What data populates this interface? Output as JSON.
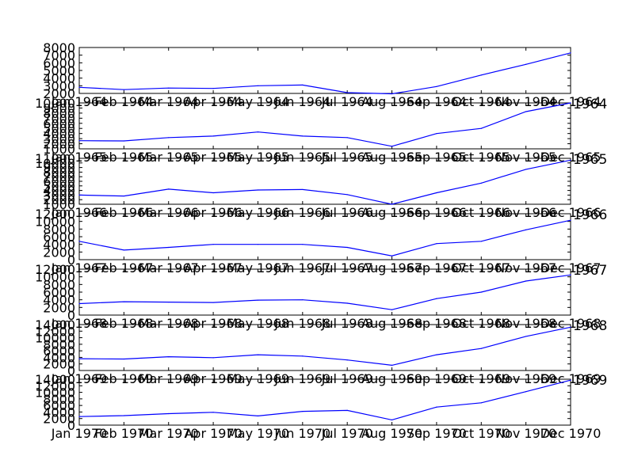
{
  "chart_data": [
    {
      "type": "line",
      "year_label": "",
      "categories": [
        "Jan 1964",
        "Feb 1964",
        "Mar 1964",
        "Apr 1964",
        "May 1964",
        "Jun 1964",
        "Jul 1964",
        "Aug 1964",
        "Sep 1964",
        "Oct 1964",
        "Nov 1964",
        "Dec 1964"
      ],
      "values": [
        2800,
        2500,
        2700,
        2650,
        3000,
        3100,
        2100,
        1950,
        2900,
        4400,
        5800,
        7300
      ],
      "ylim": [
        2000,
        8000
      ],
      "yticks": [
        2000,
        3000,
        4000,
        5000,
        6000,
        7000,
        8000
      ],
      "line_color": "#0000ff"
    },
    {
      "type": "line",
      "year_label": "1964",
      "categories": [
        "Jan 1965",
        "Feb 1965",
        "Mar 1965",
        "Apr 1965",
        "May 1965",
        "Jun 1965",
        "Jul 1965",
        "Aug 1965",
        "Sep 1965",
        "Oct 1965",
        "Nov 1965",
        "Dec 1965"
      ],
      "values": [
        2600,
        2550,
        3200,
        3500,
        4300,
        3500,
        3200,
        1500,
        4000,
        5000,
        8300,
        10000
      ],
      "ylim": [
        1000,
        10000
      ],
      "yticks": [
        1000,
        2000,
        3000,
        4000,
        5000,
        6000,
        7000,
        8000,
        9000,
        10000
      ],
      "line_color": "#0000ff"
    },
    {
      "type": "line",
      "year_label": "1965",
      "categories": [
        "Jan 1966",
        "Feb 1966",
        "Mar 1966",
        "Apr 1966",
        "May 1966",
        "Jun 1966",
        "Jul 1966",
        "Aug 1966",
        "Sep 1966",
        "Oct 1966",
        "Nov 1966",
        "Dec 1966"
      ],
      "values": [
        3000,
        2800,
        4300,
        3500,
        4100,
        4200,
        3100,
        1000,
        3500,
        5600,
        8600,
        10600
      ],
      "ylim": [
        1000,
        11000
      ],
      "yticks": [
        1000,
        2000,
        3000,
        4000,
        5000,
        6000,
        7000,
        8000,
        9000,
        10000,
        11000
      ],
      "line_color": "#0000ff"
    },
    {
      "type": "line",
      "year_label": "1966",
      "categories": [
        "Jan 1967",
        "Feb 1967",
        "Mar 1967",
        "Apr 1967",
        "May 1967",
        "Jun 1967",
        "Jul 1967",
        "Aug 1967",
        "Sep 1967",
        "Oct 1967",
        "Nov 1967",
        "Dec 1967"
      ],
      "values": [
        4800,
        2500,
        3200,
        4000,
        4000,
        4000,
        3200,
        1000,
        4200,
        4800,
        7800,
        10300
      ],
      "ylim": [
        0,
        12000
      ],
      "yticks": [
        0,
        2000,
        4000,
        6000,
        8000,
        10000,
        12000
      ],
      "line_color": "#0000ff"
    },
    {
      "type": "line",
      "year_label": "1967",
      "categories": [
        "Jan 1968",
        "Feb 1968",
        "Mar 1968",
        "Apr 1968",
        "May 1968",
        "Jun 1968",
        "Jul 1968",
        "Aug 1968",
        "Sep 1968",
        "Oct 1968",
        "Nov 1968",
        "Dec 1968"
      ],
      "values": [
        3000,
        3500,
        3400,
        3300,
        3900,
        4000,
        3100,
        1400,
        4300,
        6000,
        8900,
        10500
      ],
      "ylim": [
        0,
        12000
      ],
      "yticks": [
        0,
        2000,
        4000,
        6000,
        8000,
        10000,
        12000
      ],
      "line_color": "#0000ff"
    },
    {
      "type": "line",
      "year_label": "1968",
      "categories": [
        "Jan 1969",
        "Feb 1969",
        "Mar 1969",
        "Apr 1969",
        "May 1969",
        "Jun 1969",
        "Jul 1969",
        "Aug 1969",
        "Sep 1969",
        "Oct 1969",
        "Nov 1969",
        "Dec 1969"
      ],
      "values": [
        3600,
        3500,
        4200,
        3900,
        4800,
        4400,
        3200,
        1600,
        4800,
        6700,
        10400,
        13200
      ],
      "ylim": [
        0,
        14000
      ],
      "yticks": [
        0,
        2000,
        4000,
        6000,
        8000,
        10000,
        12000,
        14000
      ],
      "line_color": "#0000ff"
    },
    {
      "type": "line",
      "year_label": "1969",
      "categories": [
        "Jan 1970",
        "Feb 1970",
        "Mar 1970",
        "Apr 1970",
        "May 1970",
        "Jun 1970",
        "Jul 1970",
        "Aug 1970",
        "Sep 1970",
        "Oct 1970",
        "Nov 1970",
        "Dec 1970"
      ],
      "values": [
        2600,
        2900,
        3500,
        3900,
        2800,
        4200,
        4500,
        1600,
        5500,
        6800,
        10200,
        13700
      ],
      "ylim": [
        0,
        14000
      ],
      "yticks": [
        0,
        2000,
        4000,
        6000,
        8000,
        10000,
        12000,
        14000
      ],
      "line_color": "#0000ff"
    }
  ]
}
